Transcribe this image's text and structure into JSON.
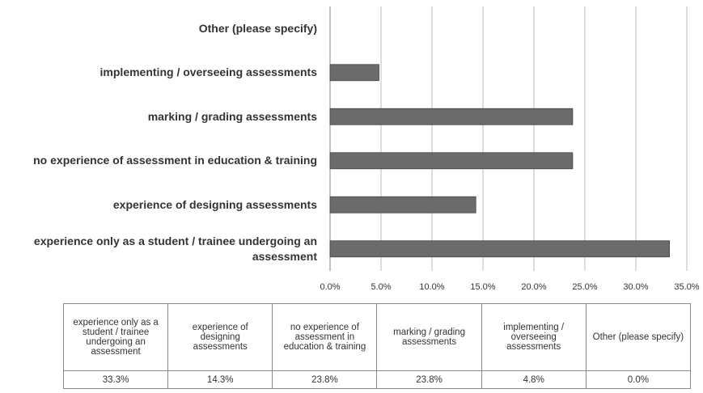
{
  "chart_data": {
    "type": "bar",
    "orientation": "horizontal",
    "categories": [
      "experience only as a student / trainee undergoing an assessment",
      "experience of designing assessments",
      "no experience of assessment in education & training",
      "marking / grading assessments",
      "implementing / overseeing assessments",
      "Other (please specify)"
    ],
    "values": [
      33.3,
      14.3,
      23.8,
      23.8,
      4.8,
      0
    ],
    "value_labels": [
      "33.3%",
      "14.3%",
      "23.8%",
      "23.8%",
      "4.8%",
      "0.0%"
    ],
    "color": "#6b6b6b",
    "xlim": [
      0,
      35
    ],
    "xticks": [
      {
        "value": 0,
        "label": "0.0%"
      },
      {
        "value": 5,
        "label": "5.0%"
      },
      {
        "value": 10,
        "label": "10.0%"
      },
      {
        "value": 15,
        "label": "15.0%"
      },
      {
        "value": 20,
        "label": "20.0%"
      },
      {
        "value": 25,
        "label": "25.0%"
      },
      {
        "value": 30,
        "label": "30.0%"
      },
      {
        "value": 35,
        "label": "35.0%"
      }
    ],
    "grid": true
  }
}
